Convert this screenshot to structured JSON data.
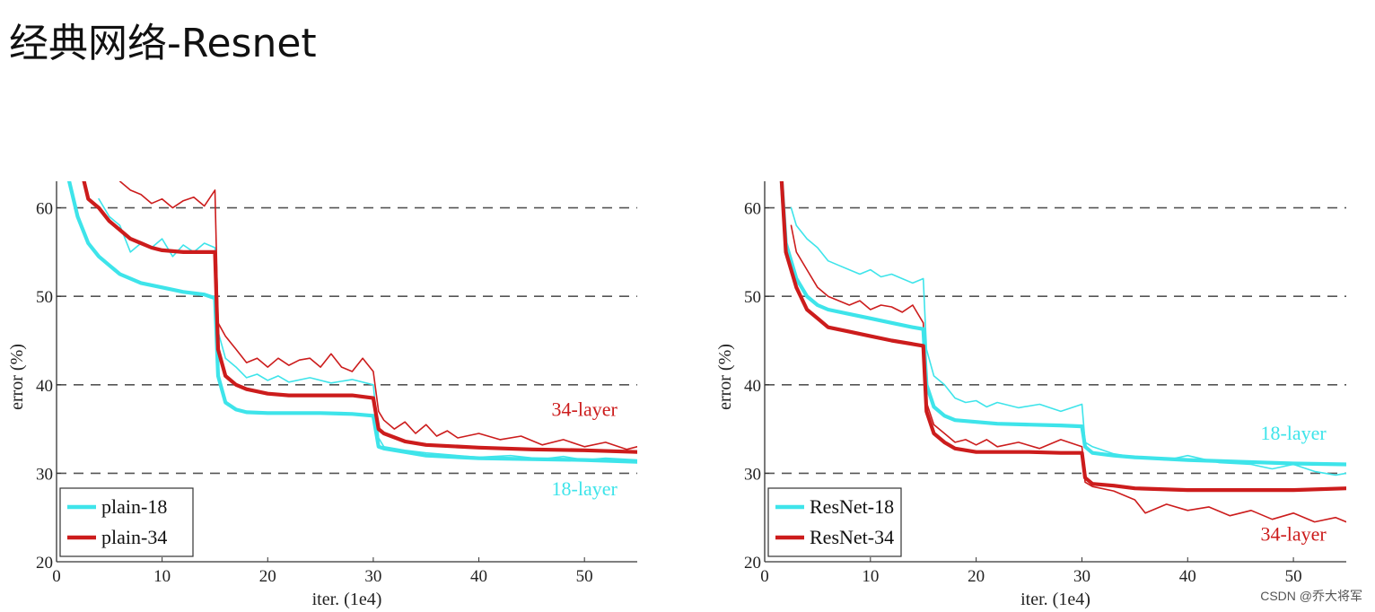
{
  "page": {
    "title": "经典网络-Resnet",
    "watermark": "CSDN @乔大将军"
  },
  "chart_data": [
    {
      "type": "line",
      "xlabel": "iter. (1e4)",
      "ylabel": "error (%)",
      "xlim": [
        0,
        55
      ],
      "ylim": [
        20,
        63
      ],
      "xticks": [
        0,
        10,
        20,
        30,
        40,
        50
      ],
      "yticks": [
        20,
        30,
        40,
        50,
        60
      ],
      "grid": "dashed horizontal at 30, 40, 50, 60",
      "legend": {
        "position": "bottom-left",
        "entries": [
          {
            "name": "plain-18",
            "color": "#3ee4ea"
          },
          {
            "name": "plain-34",
            "color": "#cc1c1c"
          }
        ]
      },
      "annotations": [
        {
          "text": "34-layer",
          "x": 50,
          "y": 36.5,
          "color": "#cc1c1c"
        },
        {
          "text": "18-layer",
          "x": 50,
          "y": 27.5,
          "color": "#3ee4ea"
        }
      ],
      "series": [
        {
          "name": "plain-18",
          "color": "#3ee4ea",
          "style": "thick",
          "x": [
            1.2,
            2,
            3,
            4,
            5,
            6,
            8,
            10,
            12,
            14,
            15,
            15.3,
            16,
            17,
            18,
            20,
            22,
            25,
            28,
            30,
            30.5,
            31,
            33,
            35,
            40,
            45,
            50,
            55
          ],
          "y": [
            63,
            59,
            56,
            54.5,
            53.5,
            52.5,
            51.5,
            51,
            50.5,
            50.2,
            49.8,
            41,
            38,
            37.2,
            36.9,
            36.8,
            36.8,
            36.8,
            36.7,
            36.5,
            33,
            32.8,
            32.4,
            32,
            31.7,
            31.6,
            31.5,
            31.3
          ]
        },
        {
          "name": "plain-34",
          "color": "#cc1c1c",
          "style": "thick",
          "x": [
            2.6,
            3,
            4,
            5,
            6,
            7,
            8,
            9,
            10,
            12,
            14,
            15,
            15.3,
            16,
            17,
            18,
            20,
            22,
            25,
            28,
            30,
            30.5,
            31,
            33,
            35,
            40,
            45,
            50,
            55
          ],
          "y": [
            63,
            61,
            60,
            58.5,
            57.5,
            56.5,
            56,
            55.5,
            55.2,
            55,
            55,
            55,
            44,
            41,
            40,
            39.5,
            39,
            38.8,
            38.8,
            38.8,
            38.5,
            35,
            34.5,
            33.6,
            33.2,
            32.9,
            32.7,
            32.6,
            32.4
          ]
        },
        {
          "name": "plain-18 (train)",
          "color": "#3ee4ea",
          "style": "thin",
          "x": [
            4,
            5,
            6,
            7,
            8,
            9,
            10,
            11,
            12,
            13,
            14,
            15,
            15.3,
            16,
            17,
            18,
            19,
            20,
            21,
            22,
            24,
            26,
            28,
            30,
            30.5,
            31,
            33,
            35,
            38,
            40,
            43,
            46,
            48,
            50,
            52,
            55
          ],
          "y": [
            61,
            59,
            58,
            55,
            56,
            55.5,
            56.5,
            54.5,
            55.8,
            55,
            56,
            55.5,
            46,
            43,
            42,
            40.8,
            41.2,
            40.5,
            41,
            40.3,
            40.8,
            40.2,
            40.6,
            40,
            34,
            33,
            32.6,
            32.3,
            32,
            31.8,
            32,
            31.6,
            31.9,
            31.5,
            31.7,
            31.5
          ]
        },
        {
          "name": "plain-34 (train)",
          "color": "#cc1c1c",
          "style": "thin",
          "x": [
            6,
            7,
            8,
            9,
            10,
            11,
            12,
            13,
            14,
            15,
            15.3,
            16,
            17,
            18,
            19,
            20,
            21,
            22,
            23,
            24,
            25,
            26,
            27,
            28,
            29,
            30,
            30.5,
            31,
            32,
            33,
            34,
            35,
            36,
            37,
            38,
            40,
            42,
            44,
            46,
            48,
            50,
            52,
            54,
            55
          ],
          "y": [
            63,
            62,
            61.5,
            60.5,
            61,
            60,
            60.8,
            61.2,
            60.2,
            62,
            47,
            45.5,
            44,
            42.5,
            43,
            42,
            43,
            42.2,
            42.8,
            43,
            42,
            43.5,
            42,
            41.5,
            43,
            41.5,
            37,
            36,
            35,
            35.8,
            34.5,
            35.5,
            34.2,
            34.8,
            34,
            34.5,
            33.8,
            34.2,
            33.2,
            33.8,
            33,
            33.5,
            32.7,
            33
          ]
        }
      ]
    },
    {
      "type": "line",
      "xlabel": "iter. (1e4)",
      "ylabel": "error (%)",
      "xlim": [
        0,
        55
      ],
      "ylim": [
        20,
        63
      ],
      "xticks": [
        0,
        10,
        20,
        30,
        40,
        50
      ],
      "yticks": [
        20,
        30,
        40,
        50,
        60
      ],
      "grid": "dashed horizontal at 30, 40, 50, 60",
      "legend": {
        "position": "bottom-left",
        "entries": [
          {
            "name": "ResNet-18",
            "color": "#3ee4ea"
          },
          {
            "name": "ResNet-34",
            "color": "#cc1c1c"
          }
        ]
      },
      "annotations": [
        {
          "text": "18-layer",
          "x": 50,
          "y": 33.8,
          "color": "#3ee4ea"
        },
        {
          "text": "34-layer",
          "x": 50,
          "y": 22.4,
          "color": "#cc1c1c"
        }
      ],
      "series": [
        {
          "name": "ResNet-18",
          "color": "#3ee4ea",
          "style": "thick",
          "x": [
            1.6,
            2,
            3,
            4,
            5,
            6,
            8,
            10,
            12,
            14,
            15,
            15.3,
            16,
            17,
            18,
            20,
            22,
            25,
            28,
            30,
            30.3,
            31,
            33,
            35,
            40,
            45,
            50,
            55
          ],
          "y": [
            63,
            56,
            52,
            50,
            49,
            48.5,
            48,
            47.5,
            47,
            46.5,
            46.3,
            40,
            37.5,
            36.5,
            36,
            35.8,
            35.6,
            35.5,
            35.4,
            35.3,
            33,
            32.3,
            32,
            31.8,
            31.5,
            31.3,
            31.1,
            31
          ]
        },
        {
          "name": "ResNet-34",
          "color": "#cc1c1c",
          "style": "thick",
          "x": [
            1.6,
            2,
            3,
            4,
            5,
            6,
            8,
            10,
            12,
            14,
            15,
            15.3,
            16,
            17,
            18,
            20,
            22,
            25,
            28,
            30,
            30.3,
            31,
            33,
            35,
            40,
            45,
            50,
            55
          ],
          "y": [
            63,
            55,
            51,
            48.5,
            47.5,
            46.5,
            46,
            45.5,
            45,
            44.6,
            44.4,
            37,
            34.5,
            33.5,
            32.8,
            32.4,
            32.4,
            32.4,
            32.3,
            32.3,
            29.5,
            28.8,
            28.6,
            28.3,
            28.1,
            28.1,
            28.1,
            28.3
          ]
        },
        {
          "name": "ResNet-18 (train)",
          "color": "#3ee4ea",
          "style": "thin",
          "x": [
            2.5,
            3,
            4,
            5,
            6,
            7,
            8,
            9,
            10,
            11,
            12,
            13,
            14,
            15,
            15.3,
            16,
            17,
            18,
            19,
            20,
            21,
            22,
            24,
            26,
            28,
            30,
            30.3,
            31,
            32,
            33,
            35,
            38,
            40,
            43,
            46,
            48,
            50,
            52,
            54,
            55
          ],
          "y": [
            60,
            58,
            56.5,
            55.5,
            54,
            53.5,
            53,
            52.5,
            53,
            52.2,
            52.5,
            52,
            51.5,
            52,
            44,
            41,
            40,
            38.5,
            38,
            38.2,
            37.5,
            38,
            37.4,
            37.8,
            37,
            37.8,
            33.5,
            33,
            32.6,
            32.2,
            31.8,
            31.5,
            32,
            31.2,
            31,
            30.5,
            31,
            30.2,
            29.8,
            30
          ]
        },
        {
          "name": "ResNet-34 (train)",
          "color": "#cc1c1c",
          "style": "thin",
          "x": [
            2.5,
            3,
            4,
            5,
            6,
            7,
            8,
            9,
            10,
            11,
            12,
            13,
            14,
            15,
            15.3,
            16,
            17,
            18,
            19,
            20,
            21,
            22,
            24,
            26,
            28,
            30,
            30.3,
            31,
            33,
            35,
            36,
            38,
            40,
            42,
            44,
            46,
            48,
            50,
            52,
            54,
            55
          ],
          "y": [
            58,
            55,
            53,
            51,
            50,
            49.5,
            49,
            49.5,
            48.5,
            49,
            48.8,
            48.2,
            49,
            47,
            38,
            35.5,
            34.5,
            33.5,
            33.8,
            33.2,
            33.8,
            33,
            33.5,
            32.8,
            33.8,
            33,
            29,
            28.5,
            28,
            27,
            25.5,
            26.5,
            25.8,
            26.2,
            25.2,
            25.8,
            24.8,
            25.5,
            24.5,
            25,
            24.5
          ]
        }
      ]
    }
  ]
}
